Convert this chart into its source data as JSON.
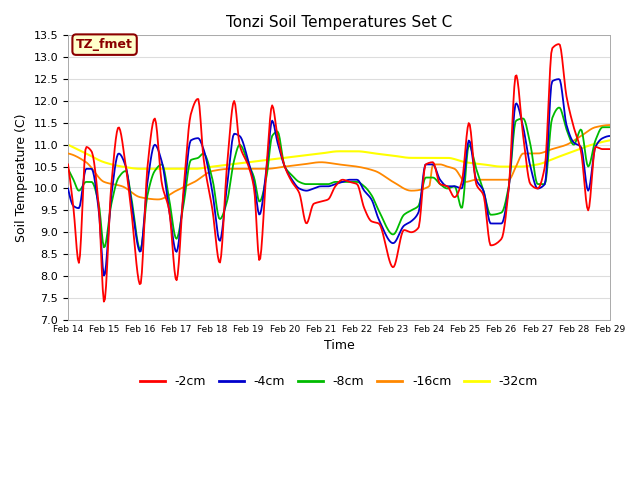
{
  "title": "Tonzi Soil Temperatures Set C",
  "xlabel": "Time",
  "ylabel": "Soil Temperature (C)",
  "ylim": [
    7.0,
    13.5
  ],
  "annotation": "TZ_fmet",
  "annotation_color": "#8B0000",
  "annotation_bg": "#FFFFCC",
  "annotation_border": "#8B0000",
  "fig_bg": "#FFFFFF",
  "plot_bg": "#FFFFFF",
  "grid_color": "#DDDDDD",
  "series_colors": {
    "-2cm": "#FF0000",
    "-4cm": "#0000CC",
    "-8cm": "#00BB00",
    "-16cm": "#FF8800",
    "-32cm": "#FFFF00"
  },
  "x_tick_labels": [
    "Feb 14",
    "Feb 15",
    "Feb 16",
    "Feb 17",
    "Feb 18",
    "Feb 19",
    "Feb 20",
    "Feb 21",
    "Feb 22",
    "Feb 23",
    "Feb 24",
    "Feb 25",
    "Feb 26",
    "Feb 27",
    "Feb 28",
    "Feb 29"
  ]
}
